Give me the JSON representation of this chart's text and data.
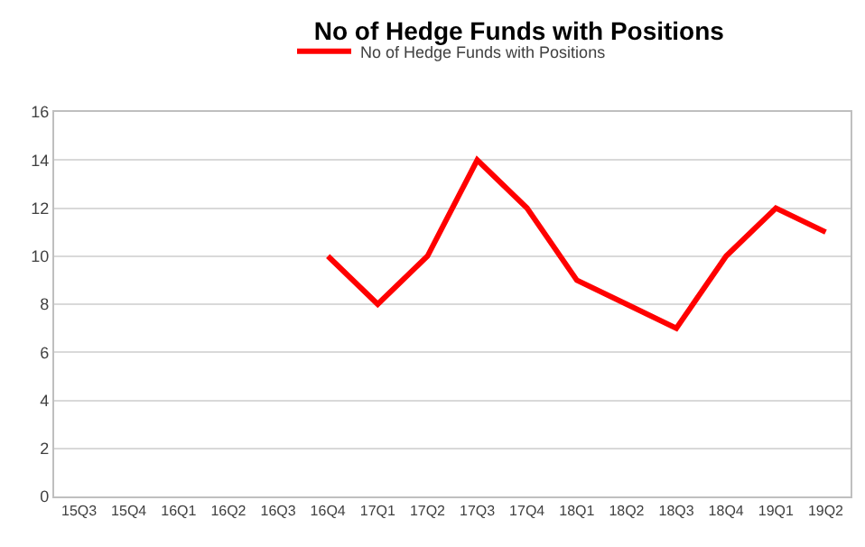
{
  "chart_data": {
    "type": "line",
    "title": "No of Hedge Funds with Positions",
    "categories": [
      "15Q3",
      "15Q4",
      "16Q1",
      "16Q2",
      "16Q3",
      "16Q4",
      "17Q1",
      "17Q2",
      "17Q3",
      "17Q4",
      "18Q1",
      "18Q2",
      "18Q3",
      "18Q4",
      "19Q1",
      "19Q2"
    ],
    "series": [
      {
        "name": "No of Hedge Funds with Positions",
        "color": "#ff0000",
        "values": [
          null,
          null,
          null,
          null,
          null,
          10,
          8,
          10,
          14,
          12,
          9,
          8,
          7,
          10,
          12,
          11
        ]
      }
    ],
    "ylim": [
      0,
      16
    ],
    "yticks": [
      0,
      2,
      4,
      6,
      8,
      10,
      12,
      14,
      16
    ],
    "grid": "y",
    "legend": "top",
    "marker": "none",
    "line_style": "solid"
  }
}
